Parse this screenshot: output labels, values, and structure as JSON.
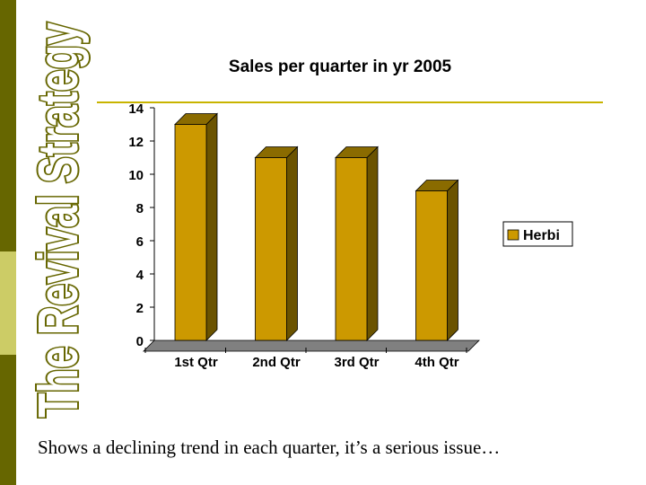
{
  "slide": {
    "vertical_title": "The Revival Strategy",
    "caption": "Shows a declining trend in each quarter, it’s a serious issue…",
    "colors": {
      "sidebar_dark": "#666600",
      "sidebar_light": "#cccc66",
      "title_outline": "#666600",
      "rule": "#c8b400"
    }
  },
  "chart_data": {
    "type": "bar",
    "title": "Sales per quarter in yr 2005",
    "categories": [
      "1st Qtr",
      "2nd Qtr",
      "3rd Qtr",
      "4th Qtr"
    ],
    "series": [
      {
        "name": "Herbi",
        "values": [
          13,
          11,
          11,
          9
        ],
        "color": "#cc9900"
      }
    ],
    "ylim": [
      0,
      14
    ],
    "yticks": [
      0,
      2,
      4,
      6,
      8,
      10,
      12,
      14
    ],
    "xlabel": "",
    "ylabel": "",
    "grid": false,
    "legend": "right",
    "style": "3d"
  }
}
